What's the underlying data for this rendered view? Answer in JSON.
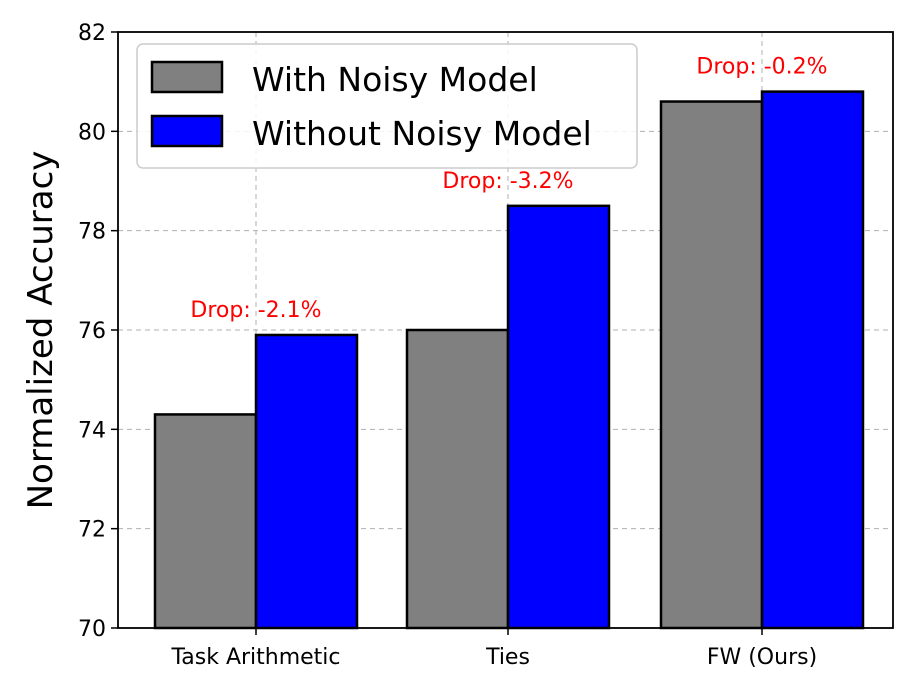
{
  "chart_data": {
    "type": "bar",
    "title": "",
    "xlabel": "",
    "ylabel": "Normalized Accuracy",
    "ylim": [
      70,
      82
    ],
    "yticks": [
      70,
      72,
      74,
      76,
      78,
      80,
      82
    ],
    "categories": [
      "Task Arithmetic",
      "Ties",
      "FW (Ours)"
    ],
    "series": [
      {
        "name": "With Noisy Model",
        "values": [
          74.3,
          76.0,
          80.6
        ],
        "color": "#808080"
      },
      {
        "name": "Without Noisy Model",
        "values": [
          75.9,
          78.5,
          80.8
        ],
        "color": "#0000ff"
      }
    ],
    "annotations": [
      "Drop: -2.1%",
      "Drop: -3.2%",
      "Drop: -0.2%"
    ],
    "annotation_color": "#ff0000",
    "grid": true,
    "legend_position": "top-left"
  }
}
